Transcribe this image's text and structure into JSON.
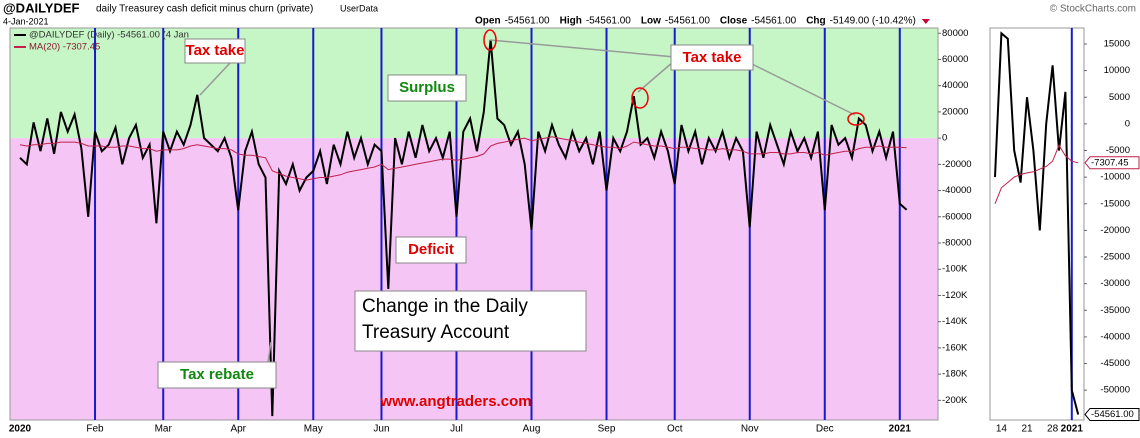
{
  "header": {
    "symbol": "@DAILYDEF",
    "description": "daily Treasurey cash deficit minus churn (private)",
    "source": "UserData",
    "date": "4-Jan-2021",
    "brand": "© StockCharts.com",
    "ohlc": [
      {
        "label": "Open",
        "value": "-54561.00"
      },
      {
        "label": "High",
        "value": "-54561.00"
      },
      {
        "label": "Low",
        "value": "-54561.00"
      },
      {
        "label": "Close",
        "value": "-54561.00"
      },
      {
        "label": "Chg",
        "value": "-5149.00 (-10.42%)"
      }
    ]
  },
  "chart_data": [
    {
      "type": "line",
      "legend": [
        "@DAILYDEF (Daily) -54561.00 (4 Jan",
        "MA(20) -7307.45"
      ],
      "annotations": [
        "Tax take",
        "Surplus",
        "Tax take",
        "Deficit",
        "Change in the Daily",
        "Treasury Account",
        "Tax rebate",
        "www.angtraders.com"
      ],
      "categories": [
        "2020",
        null,
        null,
        null,
        null,
        null,
        null,
        null,
        null,
        null,
        null,
        "Feb",
        null,
        null,
        null,
        null,
        null,
        null,
        null,
        null,
        null,
        "Mar",
        null,
        null,
        null,
        null,
        null,
        null,
        null,
        null,
        null,
        null,
        "Apr",
        null,
        null,
        null,
        null,
        null,
        null,
        null,
        null,
        null,
        null,
        "May",
        null,
        null,
        null,
        null,
        null,
        null,
        null,
        null,
        null,
        "Jun",
        null,
        null,
        null,
        null,
        null,
        null,
        null,
        null,
        null,
        null,
        "Jul",
        null,
        null,
        null,
        null,
        null,
        null,
        null,
        null,
        null,
        null,
        "Aug",
        null,
        null,
        null,
        null,
        null,
        null,
        null,
        null,
        null,
        null,
        "Sep",
        null,
        null,
        null,
        null,
        null,
        null,
        null,
        null,
        null,
        "Oct",
        null,
        null,
        null,
        null,
        null,
        null,
        null,
        null,
        null,
        null,
        "Nov",
        null,
        null,
        null,
        null,
        null,
        null,
        null,
        null,
        null,
        null,
        "Dec",
        null,
        null,
        null,
        null,
        null,
        null,
        null,
        null,
        null,
        null,
        "2021",
        null
      ],
      "series": [
        {
          "name": "@DAILYDEF",
          "color": "#000000",
          "values": [
            -15000,
            -20000,
            12000,
            -10000,
            15000,
            -12000,
            20000,
            5000,
            18000,
            -8000,
            -60000,
            5000,
            -10000,
            -5000,
            8000,
            -20000,
            0,
            10000,
            -15000,
            -5000,
            -65000,
            5000,
            -10000,
            5000,
            -5000,
            10000,
            33000,
            0,
            -5000,
            -10000,
            0,
            -15000,
            -55000,
            -10000,
            5000,
            -20000,
            -30000,
            -212000,
            -25000,
            -35000,
            -20000,
            -40000,
            -30000,
            -25000,
            -10000,
            -35000,
            -5000,
            -20000,
            5000,
            -15000,
            0,
            -20000,
            -5000,
            -10000,
            -115000,
            0,
            -20000,
            5000,
            -15000,
            10000,
            -10000,
            0,
            -15000,
            5000,
            -60000,
            5000,
            15000,
            -10000,
            20000,
            75000,
            15000,
            10000,
            -5000,
            5000,
            -20000,
            -70000,
            5000,
            -10000,
            10000,
            -5000,
            -15000,
            5000,
            -10000,
            0,
            -20000,
            5000,
            -40000,
            0,
            -10000,
            5000,
            32000,
            -5000,
            0,
            -15000,
            5000,
            -10000,
            -35000,
            10000,
            -10000,
            5000,
            -20000,
            0,
            -10000,
            5000,
            -15000,
            0,
            -10000,
            -68000,
            5000,
            -15000,
            10000,
            -5000,
            -20000,
            5000,
            -10000,
            0,
            -15000,
            5000,
            -55000,
            10000,
            -5000,
            0,
            -15000,
            15000,
            10000,
            -10000,
            5000,
            -15000,
            5000,
            -50000,
            -54561
          ]
        },
        {
          "name": "MA(20)",
          "color": "#c0204a",
          "values": [
            -5000,
            -6000,
            -5000,
            -5000,
            -4000,
            -4000,
            -3000,
            -3000,
            -3000,
            -4000,
            -6000,
            -6000,
            -6000,
            -7000,
            -7000,
            -6000,
            -6000,
            -7000,
            -8000,
            -8000,
            -10000,
            -9000,
            -9000,
            -9000,
            -8000,
            -6000,
            -5000,
            -6000,
            -7000,
            -8000,
            -8000,
            -9000,
            -12000,
            -13000,
            -13000,
            -14000,
            -15000,
            -25000,
            -27000,
            -29000,
            -30000,
            -31000,
            -32000,
            -31000,
            -30000,
            -30000,
            -29000,
            -28000,
            -26000,
            -25000,
            -24000,
            -23000,
            -22000,
            -20000,
            -24000,
            -23000,
            -22000,
            -21000,
            -20000,
            -19000,
            -18000,
            -17000,
            -16000,
            -16000,
            -17000,
            -16000,
            -15000,
            -14000,
            -12000,
            -6000,
            -4000,
            -3000,
            -2000,
            -1000,
            0,
            -2000,
            -1000,
            0,
            1000,
            0,
            -1000,
            -2000,
            -3000,
            -4000,
            -5000,
            -6000,
            -7000,
            -7000,
            -8000,
            -6000,
            -3000,
            -4000,
            -5000,
            -6000,
            -6000,
            -7000,
            -8000,
            -7000,
            -7000,
            -8000,
            -8000,
            -9000,
            -9000,
            -8000,
            -9000,
            -9000,
            -10000,
            -12000,
            -12000,
            -12000,
            -11000,
            -11000,
            -12000,
            -12000,
            -11000,
            -11000,
            -12000,
            -11000,
            -13000,
            -12000,
            -11000,
            -10000,
            -10000,
            -8000,
            -7000,
            -7000,
            -6000,
            -7000,
            -7000,
            -7000,
            -7307.45
          ]
        }
      ],
      "ylim": [
        -215000,
        84000
      ],
      "yticks": [
        80000,
        60000,
        40000,
        20000,
        0,
        -20000,
        -40000,
        -60000,
        -80000,
        {
          "value": -100000,
          "label": "-100K"
        },
        {
          "value": -120000,
          "label": "-120K"
        },
        {
          "value": -140000,
          "label": "-140K"
        },
        {
          "value": -160000,
          "label": "-160K"
        },
        {
          "value": -180000,
          "label": "-180K"
        },
        {
          "value": -200000,
          "label": "-200K"
        }
      ],
      "grid": false
    },
    {
      "type": "line",
      "categories": [
        null,
        "14",
        null,
        null,
        null,
        "21",
        null,
        null,
        null,
        "28",
        null,
        null,
        "2021",
        null
      ],
      "series": [
        {
          "name": "@DAILYDEF",
          "color": "#000000",
          "values": [
            -10000,
            17000,
            16000,
            -5000,
            -11000,
            5000,
            -5000,
            -20000,
            0,
            11000,
            -5000,
            6000,
            -50000,
            -54561
          ],
          "value_labels": [
            null,
            null,
            null,
            null,
            null,
            null,
            null,
            null,
            null,
            null,
            null,
            null,
            null,
            "-54561.00"
          ]
        },
        {
          "name": "MA(20)",
          "color": "#c0204a",
          "values": [
            -15000,
            -12000,
            -11000,
            -10000,
            -9500,
            -9200,
            -9000,
            -8500,
            -8000,
            -7000,
            -4000,
            -6000,
            -7000,
            -7307.45
          ],
          "value_labels": [
            null,
            null,
            null,
            null,
            null,
            null,
            null,
            null,
            null,
            null,
            null,
            null,
            null,
            "-7307.45"
          ]
        }
      ],
      "ylim": [
        -55600,
        18000
      ],
      "yticks": [
        15000,
        10000,
        5000,
        0,
        -5000,
        -10000,
        -15000,
        -20000,
        -25000,
        -30000,
        -35000,
        -40000,
        -45000,
        -50000
      ],
      "grid": false
    }
  ]
}
